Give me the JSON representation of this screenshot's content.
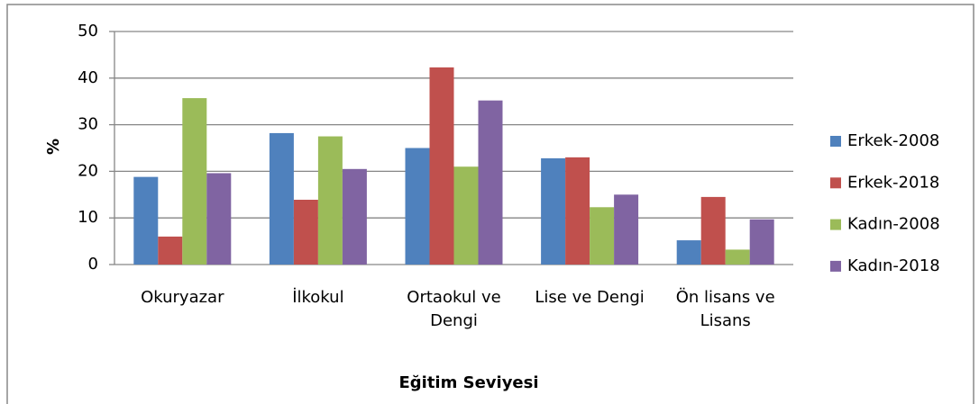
{
  "chart_data": {
    "type": "bar",
    "y_label": "%",
    "x_label": "Eğitim Seviyesi",
    "categories": [
      "Okuryazar",
      "İlkokul",
      "Ortaokul ve Dengi",
      "Lise ve Dengi",
      "Ön lisans ve Lisans"
    ],
    "series": [
      {
        "name": "Erkek-2008",
        "color": "#4f81bd",
        "values": [
          18.8,
          28.2,
          25,
          22.8,
          5.2
        ]
      },
      {
        "name": "Erkek-2018",
        "color": "#c0504d",
        "values": [
          6,
          13.9,
          42.3,
          23,
          14.5
        ]
      },
      {
        "name": "Kadın-2008",
        "color": "#9bbb59",
        "values": [
          35.7,
          27.5,
          21,
          12.3,
          3.2
        ]
      },
      {
        "name": "Kadın-2018",
        "color": "#8064a2",
        "values": [
          19.6,
          20.5,
          35.2,
          15,
          9.7
        ]
      }
    ],
    "ylim": [
      0,
      50
    ],
    "yticks": [
      0,
      10,
      20,
      30,
      40,
      50
    ],
    "grid": true,
    "legend": "right"
  }
}
